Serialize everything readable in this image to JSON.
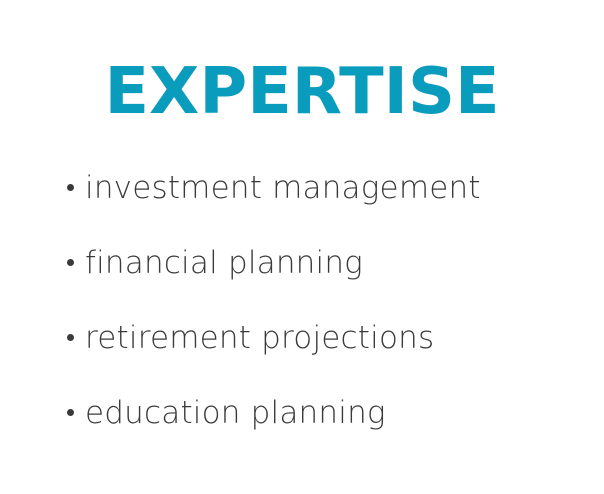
{
  "heading": "EXPERTISE",
  "accent_color": "#0a9cbd",
  "text_color": "#3a3a3a",
  "items": [
    {
      "label": "investment management"
    },
    {
      "label": "financial planning"
    },
    {
      "label": "retirement projections"
    },
    {
      "label": "education planning"
    }
  ]
}
